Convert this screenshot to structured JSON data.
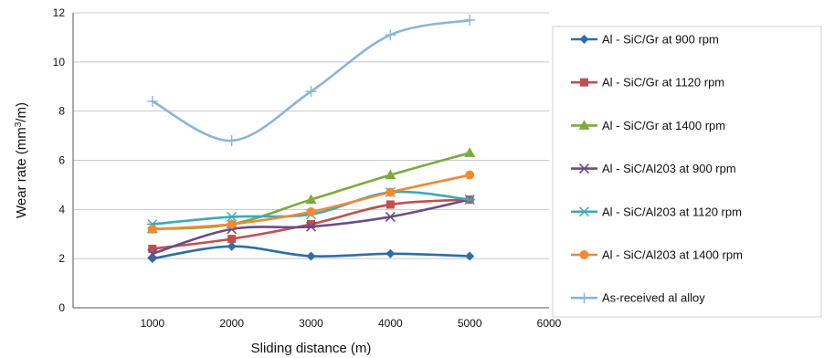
{
  "chart_data": {
    "type": "line",
    "xlabel": "Sliding distance (m)",
    "ylabel": "Wear rate (mm3/m)",
    "xlim": [
      0,
      6000
    ],
    "ylim": [
      0,
      12
    ],
    "x_ticks": [
      1000,
      2000,
      3000,
      4000,
      5000,
      6000
    ],
    "y_ticks": [
      0,
      2,
      4,
      6,
      8,
      10,
      12
    ],
    "grid": "horizontal",
    "legend_position": "right",
    "series": [
      {
        "name": "Al - SiC/Gr at 900 rpm",
        "color": "#2f6ea5",
        "marker": "diamond",
        "x": [
          1000,
          2000,
          3000,
          4000,
          5000
        ],
        "y": [
          2.0,
          2.5,
          2.1,
          2.2,
          2.1
        ]
      },
      {
        "name": "Al - SiC/Gr at 1120 rpm",
        "color": "#c0504d",
        "marker": "square",
        "x": [
          1000,
          2000,
          3000,
          4000,
          5000
        ],
        "y": [
          2.4,
          2.8,
          3.4,
          4.2,
          4.4
        ]
      },
      {
        "name": "Al - SiC/Gr at 1400 rpm",
        "color": "#7aab3c",
        "marker": "triangle",
        "x": [
          1000,
          2000,
          3000,
          4000,
          5000
        ],
        "y": [
          3.2,
          3.4,
          4.4,
          5.4,
          6.3
        ]
      },
      {
        "name": "Al - SiC/Al203 at 900 rpm",
        "color": "#6b4c8a",
        "marker": "x",
        "x": [
          1000,
          2000,
          3000,
          4000,
          5000
        ],
        "y": [
          2.2,
          3.2,
          3.3,
          3.7,
          4.4
        ]
      },
      {
        "name": "Al - SiC/Al203 at 1120 rpm",
        "color": "#3fa9b5",
        "marker": "asterisk",
        "x": [
          1000,
          2000,
          3000,
          4000,
          5000
        ],
        "y": [
          3.4,
          3.7,
          3.8,
          4.7,
          4.4
        ]
      },
      {
        "name": "Al - SiC/Al203 at 1400 rpm",
        "color": "#ef8a35",
        "marker": "circle",
        "x": [
          1000,
          2000,
          3000,
          4000,
          5000
        ],
        "y": [
          3.2,
          3.4,
          3.9,
          4.7,
          5.4
        ]
      },
      {
        "name": "As-received al alloy",
        "color": "#8bb4d8",
        "marker": "plus",
        "x": [
          1000,
          2000,
          3000,
          4000,
          5000
        ],
        "y": [
          8.4,
          6.8,
          8.8,
          11.1,
          11.7
        ]
      }
    ]
  }
}
